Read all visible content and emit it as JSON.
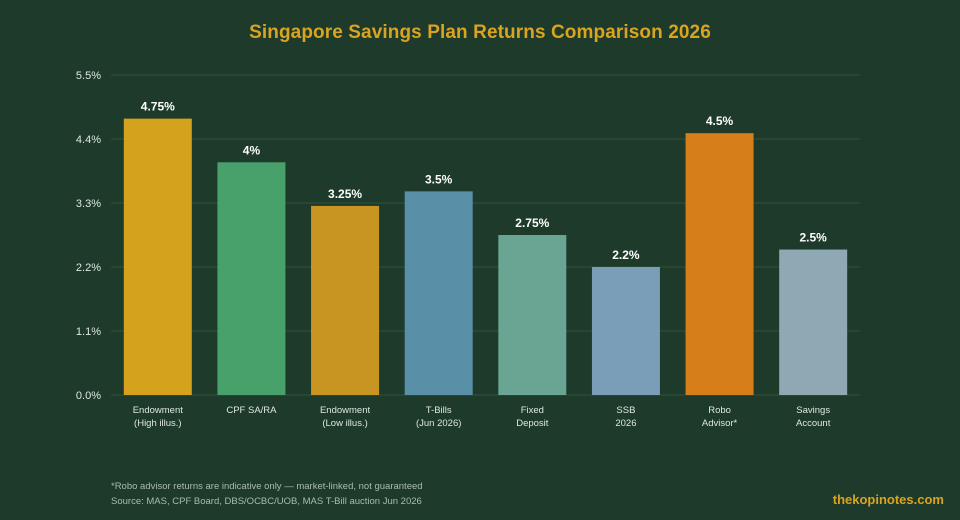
{
  "title": "Singapore Savings Plan Returns Comparison 2026",
  "footnotes": [
    "*Robo advisor returns are indicative only — market-linked, not guaranteed",
    "Source: MAS, CPF Board, DBS/OCBC/UOB, MAS T-Bill auction Jun 2026"
  ],
  "brand": "thekopinotes.com",
  "colors": {
    "background": "#1d3a2a",
    "title": "#d9a421",
    "grid": "#2f4d3b",
    "axis_text": "#dfe8e2",
    "value_label": "#ffffff"
  },
  "chart_data": {
    "type": "bar",
    "title": "Singapore Savings Plan Returns Comparison 2026",
    "xlabel": "",
    "ylabel": "",
    "ylim": [
      0,
      5.5
    ],
    "yticks": [
      "0.0%",
      "1.1%",
      "2.2%",
      "3.3%",
      "4.4%",
      "5.5%"
    ],
    "yticks_values": [
      0,
      1.1,
      2.2,
      3.3,
      4.4,
      5.5
    ],
    "grid": true,
    "categories": [
      [
        "Endowment",
        "(High illus.)"
      ],
      [
        "CPF SA/RA"
      ],
      [
        "Endowment",
        "(Low illus.)"
      ],
      [
        "T-Bills",
        "(Jun 2026)"
      ],
      [
        "Fixed",
        "Deposit"
      ],
      [
        "SSB",
        "2026"
      ],
      [
        "Robo",
        "Advisor*"
      ],
      [
        "Savings",
        "Account"
      ]
    ],
    "values": [
      4.75,
      4.0,
      3.25,
      3.5,
      2.75,
      2.2,
      4.5,
      2.5
    ],
    "value_labels": [
      "4.75%",
      "4%",
      "3.25%",
      "3.5%",
      "2.75%",
      "2.2%",
      "4.5%",
      "2.5%"
    ],
    "bar_colors": [
      "#d4a21c",
      "#48a16a",
      "#c99522",
      "#5a8fa8",
      "#6aa492",
      "#7a9db8",
      "#d67f1a",
      "#8fa9b4"
    ]
  }
}
